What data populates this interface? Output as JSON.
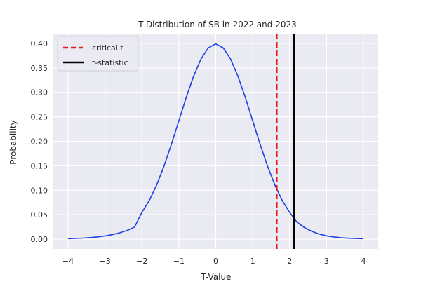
{
  "chart_data": {
    "type": "line",
    "title": "T-Distribution of SB in 2022 and 2023",
    "xlabel": "T-Value",
    "ylabel": "Probability",
    "xlim": [
      -4.4,
      4.4
    ],
    "ylim": [
      -0.02,
      0.42
    ],
    "xticks": [
      -4,
      -3,
      -2,
      -1,
      0,
      1,
      2,
      3,
      4
    ],
    "xtick_labels": [
      "−4",
      "−3",
      "−2",
      "−1",
      "0",
      "1",
      "2",
      "3",
      "4"
    ],
    "yticks": [
      0.0,
      0.05,
      0.1,
      0.15,
      0.2,
      0.25,
      0.3,
      0.35,
      0.4
    ],
    "ytick_labels": [
      "0.00",
      "0.05",
      "0.10",
      "0.15",
      "0.20",
      "0.25",
      "0.30",
      "0.35",
      "0.40"
    ],
    "grid": true,
    "legend_position": "top-left",
    "background_color": "#EAEAF2",
    "series": [
      {
        "kind": "curve",
        "color": "#1F3FE0",
        "x": [
          -4.0,
          -3.8,
          -3.6,
          -3.4,
          -3.2,
          -3.0,
          -2.8,
          -2.6,
          -2.4,
          -2.2,
          -2.0,
          -1.8,
          -1.6,
          -1.4,
          -1.2,
          -1.0,
          -0.8,
          -0.6,
          -0.4,
          -0.2,
          0.0,
          0.2,
          0.4,
          0.6,
          0.8,
          1.0,
          1.2,
          1.4,
          1.6,
          1.8,
          2.0,
          2.2,
          2.4,
          2.6,
          2.8,
          3.0,
          3.2,
          3.4,
          3.6,
          3.8,
          4.0
        ],
        "y": [
          0.001,
          0.0015,
          0.0022,
          0.0032,
          0.0046,
          0.0066,
          0.0093,
          0.0129,
          0.0178,
          0.0247,
          0.0549,
          0.079,
          0.111,
          0.1497,
          0.1942,
          0.242,
          0.2897,
          0.3332,
          0.3683,
          0.391,
          0.3989,
          0.391,
          0.3683,
          0.3332,
          0.2897,
          0.242,
          0.1942,
          0.1497,
          0.111,
          0.079,
          0.0549,
          0.0347,
          0.0238,
          0.016,
          0.0105,
          0.0068,
          0.0044,
          0.0029,
          0.002,
          0.0014,
          0.001
        ]
      },
      {
        "kind": "vline",
        "name": "critical t",
        "x": 1.65,
        "color": "#E8191B",
        "dashed": true
      },
      {
        "kind": "vline",
        "name": "t-statistic",
        "x": 2.12,
        "color": "#000000",
        "dashed": false
      }
    ]
  }
}
